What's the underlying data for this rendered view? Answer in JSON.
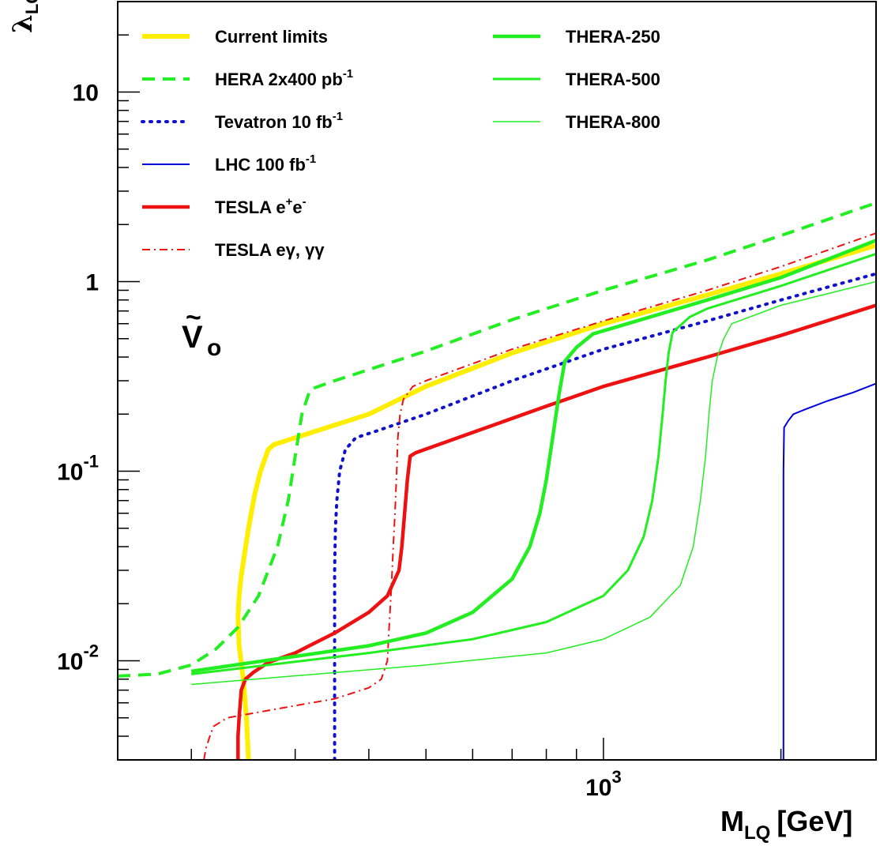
{
  "chart_data": {
    "type": "line",
    "xlabel": {
      "main": "M",
      "sub": "LQ",
      "unit": "[GeV]"
    },
    "ylabel": {
      "main": "λ",
      "sub": "LQ"
    },
    "xscale": "log",
    "yscale": "log",
    "xlim": [
      150,
      2900
    ],
    "ylim": [
      0.003,
      30
    ],
    "x_tick_labels": [
      {
        "value": 1000,
        "base": "10",
        "exp": "3"
      }
    ],
    "y_tick_labels": [
      {
        "value": 0.01,
        "base": "10",
        "exp": "-2"
      },
      {
        "value": 0.1,
        "base": "10",
        "exp": "-1"
      },
      {
        "value": 1,
        "base": "1",
        "exp": ""
      },
      {
        "value": 10,
        "base": "10",
        "exp": ""
      }
    ],
    "annotation": {
      "main": "V",
      "sub": "o",
      "accent": "~"
    },
    "legend_placement": "top-left",
    "series": [
      {
        "key": "current",
        "name": "Current limits",
        "name_sup": "",
        "name_tail": "",
        "color": "#ffee00",
        "style": "solid",
        "width": 6,
        "points": [
          [
            250,
            0.003
          ],
          [
            248,
            0.005
          ],
          [
            245,
            0.008
          ],
          [
            241,
            0.012
          ],
          [
            240,
            0.017
          ],
          [
            241,
            0.022
          ],
          [
            243,
            0.028
          ],
          [
            246,
            0.036
          ],
          [
            250,
            0.05
          ],
          [
            256,
            0.075
          ],
          [
            262,
            0.1
          ],
          [
            270,
            0.13
          ],
          [
            276,
            0.138
          ],
          [
            300,
            0.15
          ],
          [
            400,
            0.2
          ],
          [
            500,
            0.28
          ],
          [
            700,
            0.42
          ],
          [
            1000,
            0.6
          ],
          [
            1500,
            0.85
          ],
          [
            2000,
            1.1
          ],
          [
            2900,
            1.55
          ]
        ]
      },
      {
        "key": "hera",
        "name": "HERA  2x400 pb",
        "name_sup": "-1",
        "name_tail": "",
        "color": "#22ee22",
        "style": "dashed",
        "width": 4,
        "points": [
          [
            150,
            0.0083
          ],
          [
            175,
            0.0085
          ],
          [
            200,
            0.0095
          ],
          [
            220,
            0.0115
          ],
          [
            240,
            0.015
          ],
          [
            260,
            0.022
          ],
          [
            280,
            0.04
          ],
          [
            292,
            0.07
          ],
          [
            300,
            0.12
          ],
          [
            308,
            0.2
          ],
          [
            318,
            0.27
          ],
          [
            350,
            0.3
          ],
          [
            500,
            0.43
          ],
          [
            700,
            0.63
          ],
          [
            1000,
            0.9
          ],
          [
            1500,
            1.3
          ],
          [
            2000,
            1.75
          ],
          [
            2900,
            2.6
          ]
        ]
      },
      {
        "key": "tevatron",
        "name": "Tevatron  10 fb",
        "name_sup": "-1",
        "name_tail": "",
        "color": "#1111cc",
        "style": "dotted",
        "width": 4,
        "points": [
          [
            350,
            0.003
          ],
          [
            350,
            0.006
          ],
          [
            350,
            0.01
          ],
          [
            350,
            0.03
          ],
          [
            351,
            0.05
          ],
          [
            353,
            0.07
          ],
          [
            357,
            0.1
          ],
          [
            365,
            0.13
          ],
          [
            380,
            0.15
          ],
          [
            410,
            0.162
          ],
          [
            500,
            0.2
          ],
          [
            700,
            0.3
          ],
          [
            1000,
            0.44
          ],
          [
            1500,
            0.62
          ],
          [
            2000,
            0.8
          ],
          [
            2900,
            1.1
          ]
        ]
      },
      {
        "key": "lhc",
        "name": "LHC  100 fb",
        "name_sup": "-1",
        "name_tail": "",
        "color": "#0000dd",
        "style": "solid",
        "width": 2,
        "points": [
          [
            2020,
            0.003
          ],
          [
            2020,
            0.1
          ],
          [
            2025,
            0.17
          ],
          [
            2060,
            0.185
          ],
          [
            2100,
            0.2
          ],
          [
            2200,
            0.212
          ],
          [
            2400,
            0.235
          ],
          [
            2650,
            0.26
          ],
          [
            2900,
            0.29
          ]
        ]
      },
      {
        "key": "tesla_ee",
        "name": "TESLA e",
        "name_sup": "+",
        "name_tail": "e",
        "name_tail_sup": "-",
        "color": "#ee1111",
        "style": "solid",
        "width": 4.5,
        "points": [
          [
            240,
            0.003
          ],
          [
            240,
            0.004
          ],
          [
            241,
            0.005
          ],
          [
            243,
            0.007
          ],
          [
            247,
            0.008
          ],
          [
            255,
            0.0087
          ],
          [
            270,
            0.0098
          ],
          [
            300,
            0.011
          ],
          [
            350,
            0.014
          ],
          [
            400,
            0.018
          ],
          [
            430,
            0.022
          ],
          [
            450,
            0.03
          ],
          [
            455,
            0.04
          ],
          [
            460,
            0.06
          ],
          [
            465,
            0.09
          ],
          [
            470,
            0.12
          ],
          [
            480,
            0.125
          ],
          [
            600,
            0.16
          ],
          [
            800,
            0.22
          ],
          [
            1000,
            0.28
          ],
          [
            1500,
            0.4
          ],
          [
            2000,
            0.52
          ],
          [
            2900,
            0.75
          ]
        ]
      },
      {
        "key": "tesla_eg",
        "name": "TESLA  e",
        "name_sup": "",
        "name_tail": "γ,  γγ",
        "color": "#ee1111",
        "style": "dashdot",
        "width": 2,
        "points": [
          [
            210,
            0.003
          ],
          [
            212,
            0.0035
          ],
          [
            215,
            0.004
          ],
          [
            218,
            0.0045
          ],
          [
            230,
            0.005
          ],
          [
            300,
            0.0058
          ],
          [
            350,
            0.0063
          ],
          [
            400,
            0.0072
          ],
          [
            420,
            0.008
          ],
          [
            430,
            0.01
          ],
          [
            433,
            0.015
          ],
          [
            437,
            0.025
          ],
          [
            440,
            0.04
          ],
          [
            443,
            0.06
          ],
          [
            446,
            0.1
          ],
          [
            448,
            0.15
          ],
          [
            452,
            0.2
          ],
          [
            458,
            0.24
          ],
          [
            475,
            0.28
          ],
          [
            500,
            0.3
          ],
          [
            700,
            0.44
          ],
          [
            1000,
            0.62
          ],
          [
            1500,
            0.9
          ],
          [
            2000,
            1.2
          ],
          [
            2900,
            1.8
          ]
        ]
      },
      {
        "key": "thera250",
        "name": "THERA-250",
        "name_sup": "",
        "name_tail": "",
        "color": "#22ee22",
        "style": "solid",
        "width": 4.5,
        "points": [
          [
            200,
            0.0088
          ],
          [
            400,
            0.012
          ],
          [
            500,
            0.014
          ],
          [
            600,
            0.018
          ],
          [
            700,
            0.027
          ],
          [
            750,
            0.04
          ],
          [
            780,
            0.06
          ],
          [
            800,
            0.09
          ],
          [
            820,
            0.15
          ],
          [
            840,
            0.25
          ],
          [
            860,
            0.38
          ],
          [
            900,
            0.45
          ],
          [
            960,
            0.53
          ],
          [
            1000,
            0.55
          ],
          [
            1500,
            0.8
          ],
          [
            2000,
            1.05
          ],
          [
            2900,
            1.65
          ]
        ]
      },
      {
        "key": "thera500",
        "name": "THERA-500",
        "name_sup": "",
        "name_tail": "",
        "color": "#22ee22",
        "style": "solid",
        "width": 3,
        "points": [
          [
            200,
            0.0085
          ],
          [
            400,
            0.011
          ],
          [
            600,
            0.013
          ],
          [
            800,
            0.016
          ],
          [
            1000,
            0.022
          ],
          [
            1100,
            0.03
          ],
          [
            1170,
            0.045
          ],
          [
            1210,
            0.07
          ],
          [
            1240,
            0.12
          ],
          [
            1260,
            0.2
          ],
          [
            1275,
            0.3
          ],
          [
            1290,
            0.42
          ],
          [
            1310,
            0.54
          ],
          [
            1400,
            0.65
          ],
          [
            1500,
            0.72
          ],
          [
            2000,
            0.95
          ],
          [
            2900,
            1.4
          ]
        ]
      },
      {
        "key": "thera800",
        "name": "THERA-800",
        "name_sup": "",
        "name_tail": "",
        "color": "#22ee22",
        "style": "solid",
        "width": 1.5,
        "points": [
          [
            200,
            0.0075
          ],
          [
            500,
            0.0095
          ],
          [
            800,
            0.011
          ],
          [
            1000,
            0.013
          ],
          [
            1200,
            0.017
          ],
          [
            1350,
            0.025
          ],
          [
            1420,
            0.04
          ],
          [
            1460,
            0.07
          ],
          [
            1490,
            0.12
          ],
          [
            1510,
            0.2
          ],
          [
            1530,
            0.3
          ],
          [
            1560,
            0.4
          ],
          [
            1600,
            0.5
          ],
          [
            1650,
            0.6
          ],
          [
            2000,
            0.75
          ],
          [
            2900,
            1.0
          ]
        ]
      }
    ]
  }
}
